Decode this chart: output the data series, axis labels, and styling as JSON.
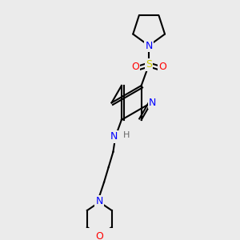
{
  "background_color": "#ebebeb",
  "bond_color": "#000000",
  "bond_width": 1.5,
  "atom_colors": {
    "N": "#0000ff",
    "O": "#ff0000",
    "S": "#cccc00",
    "H": "#666666",
    "C": "#000000"
  },
  "font_size": 9,
  "fig_size": [
    3.0,
    3.0
  ],
  "dpi": 100
}
